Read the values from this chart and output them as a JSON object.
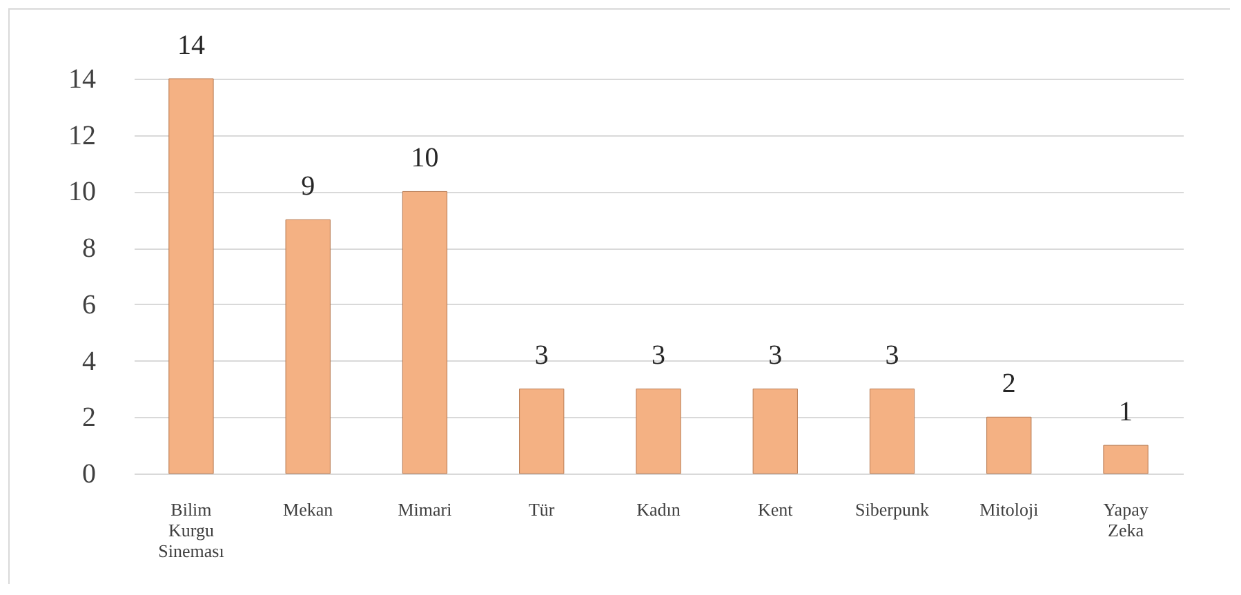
{
  "chart_data": {
    "type": "bar",
    "categories": [
      "Bilim Kurgu Sineması",
      "Mekan",
      "Mimari",
      "Tür",
      "Kadın",
      "Kent",
      "Siberpunk",
      "Mitoloji",
      "Yapay Zeka"
    ],
    "values": [
      14,
      9,
      10,
      3,
      3,
      3,
      3,
      2,
      1
    ],
    "color": "#f4b183",
    "ylim": [
      0,
      14
    ],
    "yticks": [
      0,
      2,
      4,
      6,
      8,
      10,
      12,
      14
    ],
    "grid": "y",
    "data_labels": true
  }
}
